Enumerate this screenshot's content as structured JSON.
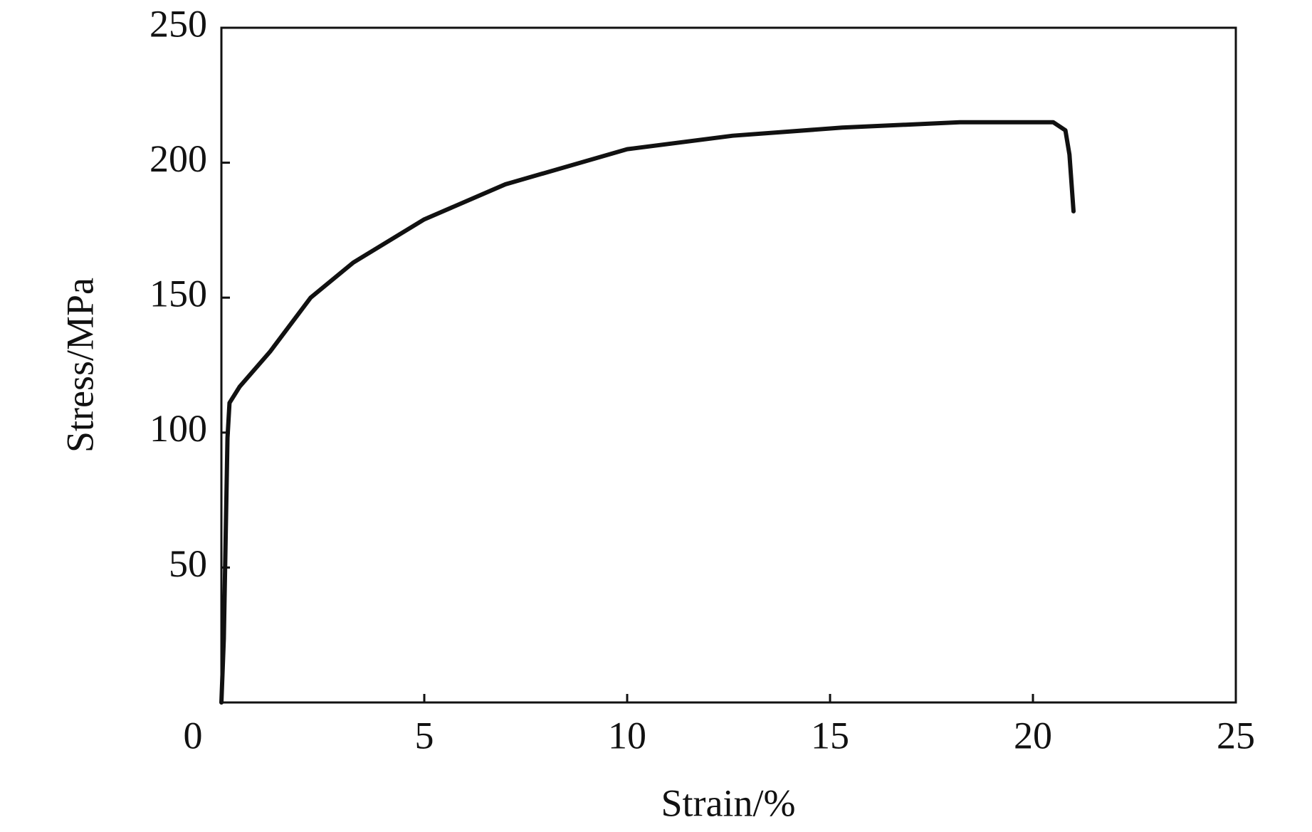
{
  "chart_data": {
    "type": "line",
    "x_label": "Strain/%",
    "y_label": "Stress/MPa",
    "x": [
      0,
      0.06,
      0.15,
      0.2,
      0.45,
      1.2,
      2.2,
      3.25,
      5,
      7,
      10,
      12.6,
      15.3,
      18.2,
      20.5,
      20.8,
      20.9,
      21
    ],
    "series": [
      {
        "color": "#111111",
        "values": [
          0,
          23.7,
          98,
          111,
          117,
          130,
          150,
          163,
          179,
          192,
          205,
          210,
          213,
          215,
          215,
          212,
          203,
          182
        ]
      }
    ],
    "xlim": [
      0,
      25
    ],
    "xticks": [
      0,
      5,
      10,
      15,
      20,
      25
    ],
    "ylim": [
      0,
      250
    ],
    "yticks": [
      50,
      100,
      150,
      200,
      250
    ],
    "grid": false
  }
}
